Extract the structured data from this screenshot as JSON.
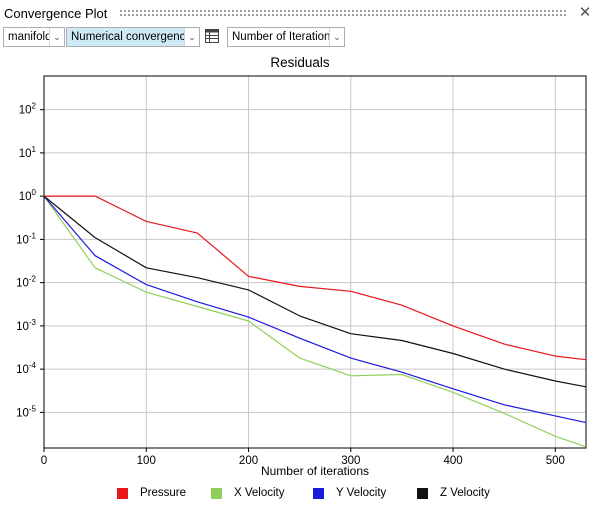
{
  "window": {
    "title": "Convergence Plot"
  },
  "toolbar": {
    "region_value": "manifold",
    "plot_type_value": "Numerical convergence",
    "x_axis_value": "Number of Iterations"
  },
  "chart_data": {
    "type": "line",
    "title": "Residuals",
    "xlabel": "Number of iterations",
    "ylabel": "",
    "xlim": [
      0,
      530
    ],
    "ylim": [
      1.5e-06,
      600
    ],
    "yscale": "log",
    "grid": true,
    "legend_position": "bottom",
    "x_ticks": [
      "0",
      "100",
      "200",
      "300",
      "400",
      "500"
    ],
    "y_ticks": [
      {
        "base": "10",
        "exp": "-5"
      },
      {
        "base": "10",
        "exp": "-4"
      },
      {
        "base": "10",
        "exp": "-3"
      },
      {
        "base": "10",
        "exp": "-2"
      },
      {
        "base": "10",
        "exp": "-1"
      },
      {
        "base": "10",
        "exp": "0"
      },
      {
        "base": "10",
        "exp": "1"
      },
      {
        "base": "10",
        "exp": "2"
      }
    ],
    "x": [
      0,
      50,
      100,
      150,
      200,
      250,
      300,
      350,
      400,
      450,
      500,
      530
    ],
    "series": [
      {
        "name": "Pressure",
        "color": "#e8161b",
        "values": [
          1,
          1,
          0.26,
          0.14,
          0.014,
          0.0082,
          0.0063,
          0.003,
          0.001,
          0.00038,
          0.0002,
          0.000165
        ]
      },
      {
        "name": "X Velocity",
        "color": "#8fd05a",
        "values": [
          1,
          0.022,
          0.006,
          0.0028,
          0.0013,
          0.00018,
          7e-05,
          7.5e-05,
          2.9e-05,
          9.5e-06,
          2.8e-06,
          1.6e-06
        ]
      },
      {
        "name": "Y Velocity",
        "color": "#1a1adf",
        "values": [
          1,
          0.042,
          0.009,
          0.0036,
          0.0016,
          0.00052,
          0.00018,
          8.5e-05,
          3.5e-05,
          1.5e-05,
          8.3e-06,
          5.8e-06
        ]
      },
      {
        "name": "Z Velocity",
        "color": "#111111",
        "values": [
          1,
          0.11,
          0.022,
          0.013,
          0.0068,
          0.0017,
          0.00066,
          0.00046,
          0.00023,
          0.0001,
          5.3e-05,
          3.9e-05
        ]
      }
    ]
  }
}
